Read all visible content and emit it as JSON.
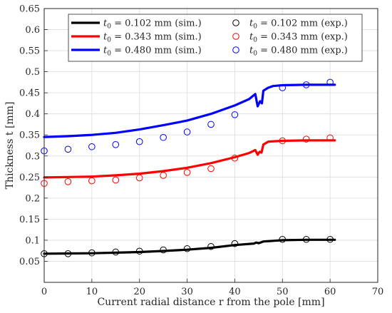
{
  "chart_data": {
    "type": "line",
    "title": "",
    "xlabel": "Current radial distance r from the pole [mm]",
    "ylabel": "Thickness t [mm]",
    "xlim": [
      0,
      70
    ],
    "ylim": [
      0,
      0.65
    ],
    "xticks": [
      "0",
      "10",
      "20",
      "30",
      "40",
      "50",
      "60",
      "70"
    ],
    "yticks": [
      "0.05",
      "0.1",
      "0.15",
      "0.2",
      "0.25",
      "0.3",
      "0.35",
      "0.4",
      "0.45",
      "0.5",
      "0.55",
      "0.6",
      "0.65"
    ],
    "grid": true,
    "legend_position": "top",
    "series": [
      {
        "name": "t0 = 0.102 mm (sim.)",
        "kind": "line",
        "color": "#000000",
        "points": [
          [
            0,
            0.068
          ],
          [
            5,
            0.0685
          ],
          [
            10,
            0.069
          ],
          [
            15,
            0.0705
          ],
          [
            20,
            0.072
          ],
          [
            25,
            0.0745
          ],
          [
            30,
            0.0775
          ],
          [
            35,
            0.082
          ],
          [
            40,
            0.0885
          ],
          [
            44,
            0.092
          ],
          [
            44.5,
            0.0945
          ],
          [
            45,
            0.093
          ],
          [
            46,
            0.097
          ],
          [
            48,
            0.0985
          ],
          [
            50,
            0.1
          ],
          [
            55,
            0.101
          ],
          [
            61,
            0.101
          ]
        ]
      },
      {
        "name": "t0 = 0.343 mm (sim.)",
        "kind": "line",
        "color": "#ff0000",
        "points": [
          [
            0,
            0.249
          ],
          [
            5,
            0.25
          ],
          [
            10,
            0.251
          ],
          [
            15,
            0.254
          ],
          [
            20,
            0.258
          ],
          [
            25,
            0.264
          ],
          [
            30,
            0.272
          ],
          [
            35,
            0.283
          ],
          [
            40,
            0.297
          ],
          [
            43,
            0.307
          ],
          [
            44.3,
            0.314
          ],
          [
            44.8,
            0.303
          ],
          [
            45.2,
            0.31
          ],
          [
            45.6,
            0.308
          ],
          [
            46,
            0.327
          ],
          [
            47,
            0.334
          ],
          [
            50,
            0.336
          ],
          [
            55,
            0.337
          ],
          [
            61,
            0.337
          ]
        ]
      },
      {
        "name": "t0 = 0.480 mm (sim.)",
        "kind": "line",
        "color": "#0000ff",
        "points": [
          [
            0,
            0.345
          ],
          [
            5,
            0.347
          ],
          [
            10,
            0.35
          ],
          [
            15,
            0.355
          ],
          [
            20,
            0.363
          ],
          [
            25,
            0.373
          ],
          [
            30,
            0.384
          ],
          [
            35,
            0.4
          ],
          [
            40,
            0.42
          ],
          [
            43,
            0.435
          ],
          [
            44.3,
            0.447
          ],
          [
            44.8,
            0.418
          ],
          [
            45.3,
            0.43
          ],
          [
            45.7,
            0.425
          ],
          [
            46,
            0.455
          ],
          [
            47,
            0.462
          ],
          [
            48,
            0.466
          ],
          [
            50,
            0.468
          ],
          [
            55,
            0.469
          ],
          [
            61,
            0.469
          ]
        ]
      },
      {
        "name": "t0 = 0.102 mm (exp.)",
        "kind": "markers",
        "color": "#000000",
        "points": [
          [
            0,
            0.068
          ],
          [
            5,
            0.068
          ],
          [
            10,
            0.07
          ],
          [
            15,
            0.072
          ],
          [
            20,
            0.074
          ],
          [
            25,
            0.077
          ],
          [
            30,
            0.08
          ],
          [
            35,
            0.085
          ],
          [
            40,
            0.092
          ],
          [
            50,
            0.102
          ],
          [
            55,
            0.102
          ],
          [
            60,
            0.102
          ]
        ]
      },
      {
        "name": "t0 = 0.343 mm (exp.)",
        "kind": "markers",
        "color": "#ff0000",
        "points": [
          [
            0,
            0.235
          ],
          [
            5,
            0.239
          ],
          [
            10,
            0.241
          ],
          [
            15,
            0.243
          ],
          [
            20,
            0.248
          ],
          [
            25,
            0.254
          ],
          [
            30,
            0.261
          ],
          [
            35,
            0.27
          ],
          [
            40,
            0.295
          ],
          [
            50,
            0.336
          ],
          [
            55,
            0.34
          ],
          [
            60,
            0.343
          ]
        ]
      },
      {
        "name": "t0 = 0.480 mm (exp.)",
        "kind": "markers",
        "color": "#0000ff",
        "points": [
          [
            0,
            0.312
          ],
          [
            5,
            0.316
          ],
          [
            10,
            0.322
          ],
          [
            15,
            0.327
          ],
          [
            20,
            0.334
          ],
          [
            25,
            0.344
          ],
          [
            30,
            0.357
          ],
          [
            35,
            0.375
          ],
          [
            40,
            0.398
          ],
          [
            50,
            0.462
          ],
          [
            55,
            0.469
          ],
          [
            60,
            0.475
          ]
        ]
      }
    ]
  }
}
